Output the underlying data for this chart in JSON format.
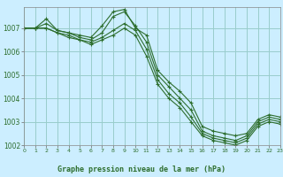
{
  "title": "Graphe pression niveau de la mer (hPa)",
  "background_color": "#cceeff",
  "grid_color": "#99cccc",
  "line_color": "#2d6e2d",
  "xlim": [
    0,
    23
  ],
  "ylim": [
    1002,
    1007.9
  ],
  "yticks": [
    1002,
    1003,
    1004,
    1005,
    1006,
    1007
  ],
  "xticks": [
    0,
    1,
    2,
    3,
    4,
    5,
    6,
    7,
    8,
    9,
    10,
    11,
    12,
    13,
    14,
    15,
    16,
    17,
    18,
    19,
    20,
    21,
    22,
    23
  ],
  "series": [
    [
      1007.0,
      1007.0,
      1007.4,
      1006.9,
      1006.8,
      1006.7,
      1006.6,
      1007.1,
      1007.7,
      1007.8,
      1007.0,
      1006.7,
      1005.2,
      1004.7,
      1004.3,
      1003.8,
      1002.8,
      1002.6,
      1002.5,
      1002.4,
      1002.5,
      1003.1,
      1003.3,
      1003.2
    ],
    [
      1007.0,
      1007.0,
      1007.2,
      1006.9,
      1006.8,
      1006.6,
      1006.5,
      1006.8,
      1007.5,
      1007.7,
      1007.1,
      1006.4,
      1005.0,
      1004.5,
      1004.0,
      1003.5,
      1002.6,
      1002.4,
      1002.3,
      1002.2,
      1002.4,
      1003.0,
      1003.2,
      1003.1
    ],
    [
      1007.0,
      1007.0,
      1007.0,
      1006.8,
      1006.7,
      1006.5,
      1006.4,
      1006.6,
      1006.9,
      1007.2,
      1006.9,
      1006.1,
      1004.8,
      1004.2,
      1003.8,
      1003.2,
      1002.5,
      1002.3,
      1002.2,
      1002.1,
      1002.3,
      1002.9,
      1003.1,
      1003.0
    ],
    [
      1007.0,
      1007.0,
      1007.0,
      1006.8,
      1006.6,
      1006.5,
      1006.3,
      1006.5,
      1006.7,
      1007.0,
      1006.7,
      1005.8,
      1004.6,
      1004.0,
      1003.6,
      1003.0,
      1002.4,
      1002.2,
      1002.1,
      1002.0,
      1002.2,
      1002.8,
      1003.0,
      1002.9
    ]
  ]
}
